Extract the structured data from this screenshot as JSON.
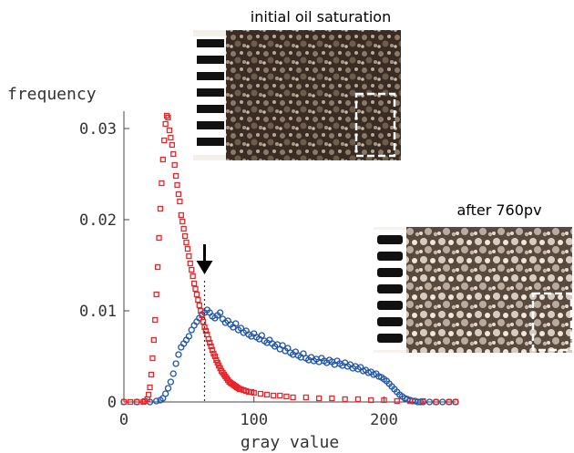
{
  "chart_data": {
    "type": "scatter",
    "ylabel": "frequency",
    "xlabel": "gray value",
    "xlim": [
      0,
      255
    ],
    "ylim": [
      0,
      0.033
    ],
    "x_ticks": [
      "0",
      "100",
      "200"
    ],
    "y_ticks": [
      "0",
      "0.01",
      "0.02",
      "0.03"
    ],
    "annotations": {
      "image_top_label": "initial oil saturation",
      "image_bottom_label": "after 760pv",
      "threshold_gray_value": 62
    },
    "series": [
      {
        "marker": "square",
        "color": "#e8262a",
        "x": [
          0,
          5,
          10,
          15,
          16,
          18,
          19,
          20,
          21,
          22,
          23,
          24,
          25,
          26,
          27,
          28,
          29,
          30,
          31,
          32,
          33,
          34,
          35,
          36,
          37,
          38,
          39,
          40,
          41,
          42,
          43,
          44,
          45,
          46,
          47,
          48,
          49,
          50,
          51,
          52,
          53,
          54,
          55,
          56,
          57,
          58,
          59,
          60,
          61,
          62,
          63,
          64,
          65,
          66,
          67,
          68,
          69,
          70,
          71,
          72,
          73,
          74,
          75,
          76,
          77,
          78,
          79,
          80,
          81,
          82,
          83,
          84,
          85,
          86,
          87,
          88,
          89,
          90,
          92,
          94,
          96,
          98,
          100,
          105,
          110,
          115,
          120,
          125,
          130,
          140,
          150,
          160,
          170,
          180,
          190,
          200,
          210,
          220,
          230,
          240,
          250,
          255
        ],
        "y": [
          0,
          0,
          0,
          0,
          0.0001,
          0.0003,
          0.0008,
          0.0016,
          0.003,
          0.0048,
          0.0068,
          0.009,
          0.0118,
          0.0148,
          0.018,
          0.0212,
          0.024,
          0.0266,
          0.0287,
          0.0305,
          0.0314,
          0.0312,
          0.0298,
          0.029,
          0.0282,
          0.0272,
          0.026,
          0.0248,
          0.0238,
          0.0228,
          0.022,
          0.0205,
          0.0198,
          0.019,
          0.0182,
          0.0175,
          0.0168,
          0.016,
          0.0152,
          0.0145,
          0.0138,
          0.013,
          0.0124,
          0.0118,
          0.0112,
          0.0106,
          0.01,
          0.0095,
          0.0088,
          0.0082,
          0.0078,
          0.0074,
          0.0069,
          0.0065,
          0.0061,
          0.0057,
          0.0053,
          0.005,
          0.0046,
          0.0043,
          0.004,
          0.0037,
          0.0034,
          0.0032,
          0.003,
          0.0028,
          0.0026,
          0.0024,
          0.0022,
          0.0021,
          0.002,
          0.0019,
          0.0018,
          0.0017,
          0.0016,
          0.0015,
          0.0014,
          0.0014,
          0.0013,
          0.0012,
          0.0011,
          0.0011,
          0.001,
          0.0009,
          0.0008,
          0.0007,
          0.0007,
          0.0006,
          0.0005,
          0.0005,
          0.0004,
          0.0004,
          0.0003,
          0.0003,
          0.0002,
          0.0002,
          0.0001,
          0.0001,
          0.0001,
          0,
          0,
          0
        ]
      },
      {
        "marker": "circle",
        "color": "#2155a8",
        "x": [
          0,
          10,
          20,
          25,
          28,
          30,
          32,
          34,
          36,
          38,
          40,
          42,
          44,
          46,
          48,
          50,
          52,
          54,
          56,
          58,
          60,
          62,
          64,
          66,
          68,
          70,
          72,
          74,
          76,
          78,
          80,
          82,
          84,
          86,
          88,
          90,
          92,
          94,
          96,
          98,
          100,
          102,
          104,
          106,
          108,
          110,
          112,
          114,
          116,
          118,
          120,
          122,
          124,
          126,
          128,
          130,
          132,
          134,
          136,
          138,
          140,
          142,
          144,
          146,
          148,
          150,
          152,
          154,
          156,
          158,
          160,
          162,
          164,
          166,
          168,
          170,
          172,
          174,
          176,
          178,
          180,
          182,
          184,
          186,
          188,
          190,
          192,
          194,
          196,
          198,
          200,
          202,
          204,
          206,
          208,
          210,
          212,
          214,
          216,
          218,
          220,
          222,
          224,
          226,
          228,
          230,
          235,
          240,
          245,
          250,
          255
        ],
        "y": [
          0,
          0,
          0,
          0.0001,
          0.0002,
          0.0004,
          0.0009,
          0.0015,
          0.0022,
          0.0031,
          0.0042,
          0.0052,
          0.006,
          0.0064,
          0.0068,
          0.0072,
          0.0079,
          0.0084,
          0.0088,
          0.0092,
          0.0096,
          0.0098,
          0.0101,
          0.0098,
          0.0094,
          0.0092,
          0.0095,
          0.0098,
          0.0091,
          0.0087,
          0.0089,
          0.0085,
          0.0082,
          0.0086,
          0.0079,
          0.0081,
          0.0076,
          0.0078,
          0.0074,
          0.0072,
          0.0075,
          0.0071,
          0.0069,
          0.0073,
          0.0067,
          0.0065,
          0.0068,
          0.0064,
          0.0061,
          0.0063,
          0.0058,
          0.0062,
          0.0056,
          0.0059,
          0.0054,
          0.0052,
          0.0055,
          0.0051,
          0.0049,
          0.0053,
          0.0048,
          0.0046,
          0.0049,
          0.0045,
          0.0047,
          0.0044,
          0.0048,
          0.0045,
          0.0043,
          0.0046,
          0.0044,
          0.0041,
          0.0045,
          0.0042,
          0.004,
          0.0043,
          0.0039,
          0.0041,
          0.0037,
          0.0039,
          0.0036,
          0.0038,
          0.0034,
          0.0035,
          0.0032,
          0.0033,
          0.003,
          0.0031,
          0.0028,
          0.0027,
          0.0025,
          0.0023,
          0.002,
          0.0017,
          0.0014,
          0.0011,
          0.0008,
          0.0006,
          0.0004,
          0.0003,
          0.0002,
          0.0001,
          0.0001,
          0,
          0,
          0,
          0,
          0,
          0,
          0,
          0
        ]
      }
    ]
  }
}
